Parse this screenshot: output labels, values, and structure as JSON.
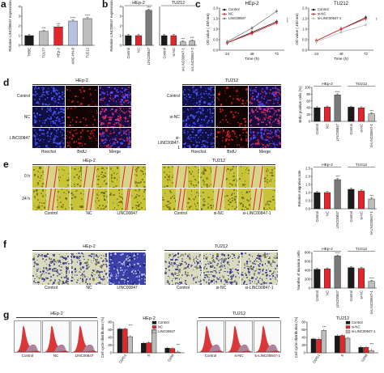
{
  "panels": {
    "a": "a",
    "b": "b",
    "c": "c",
    "d": "d",
    "e": "e",
    "f": "f",
    "g": "g"
  },
  "groups": {
    "hep2": "HEp-2",
    "tu212": "TU212"
  },
  "colors": {
    "control": "#1a1a1a",
    "red": "#e3262c",
    "gray": "#bdbdbd",
    "blue_dapi": "#2228c8",
    "red_brdu": "#d21a1a",
    "wound_yellow": "#c9c33a",
    "invasion_blue": "#3d3fa6"
  },
  "d_images": {
    "rows_hep2": [
      "Control",
      "NC",
      "LINC00847"
    ],
    "rows_tu212": [
      "Control",
      "si-NC",
      "si-LINC00847-1"
    ],
    "cols": [
      "Hoechst",
      "BrdU",
      "Merge"
    ]
  },
  "e_images": {
    "rows": [
      "0 h",
      "24 h"
    ],
    "cols_hep2": [
      "Control",
      "NC",
      "LINC00847"
    ],
    "cols_tu212": [
      "Control",
      "si-NC",
      "si-LINC00847-1"
    ]
  },
  "f_images": {
    "cols_hep2": [
      "Control",
      "NC",
      "LINC00847"
    ],
    "cols_tu212": [
      "Control",
      "si-NC",
      "si-LINC00847-1"
    ]
  },
  "g_images": {
    "cols_hep2": [
      "Control",
      "NC",
      "LINC00847"
    ],
    "cols_tu212": [
      "Control",
      "si-NC",
      "si-LINC00847-1"
    ]
  },
  "chart_data": [
    {
      "id": "a",
      "type": "bar",
      "ylabel": "Relative LINC00847 expression",
      "categories": [
        "THBE",
        "TU177",
        "HEp-2",
        "AMC-HN-8",
        "TU212"
      ],
      "values": [
        1.0,
        1.45,
        1.9,
        2.5,
        2.75
      ],
      "colors": [
        "#1a1a1a",
        "#bdbdbd",
        "#e3262c",
        "#b5c3e0",
        "#bdbdbd"
      ],
      "ylim": [
        0,
        4
      ],
      "yticks": [
        "0",
        "1",
        "2",
        "3",
        "4"
      ],
      "sig": [
        "",
        "***",
        "***",
        "****",
        "****"
      ]
    },
    {
      "id": "b1",
      "type": "bar",
      "title": "HEp-2",
      "ylabel": "Relative LINC00847 expression",
      "categories": [
        "Control",
        "NC",
        "LINC00847"
      ],
      "values": [
        1.0,
        1.0,
        3.6
      ],
      "colors": [
        "#1a1a1a",
        "#e3262c",
        "#7a7a7a"
      ],
      "ylim": [
        0,
        4
      ],
      "yticks": [
        "0",
        "1",
        "2",
        "3",
        "4"
      ],
      "sig": [
        "",
        "",
        "***"
      ]
    },
    {
      "id": "b2",
      "type": "bar",
      "title": "TU212",
      "categories": [
        "Control",
        "si-NC",
        "si-LINC00847-1",
        "si-LINC00847-2"
      ],
      "values": [
        1.0,
        1.0,
        0.35,
        0.45
      ],
      "colors": [
        "#1a1a1a",
        "#e3262c",
        "#bdbdbd",
        "#bdbdbd"
      ],
      "ylim": [
        0,
        4
      ],
      "sig": [
        "",
        "",
        "***",
        "***"
      ]
    },
    {
      "id": "c1",
      "type": "line",
      "title": "HEp-2",
      "xlabel": "Time (h)",
      "ylabel": "OD value ( 450 nm)",
      "x": [
        24,
        48,
        72
      ],
      "ylim": [
        0,
        2.0
      ],
      "yticks": [
        "0.0",
        "0.5",
        "1.0",
        "1.5",
        "2.0"
      ],
      "legend": "top-left",
      "series": [
        {
          "name": "Control",
          "values": [
            0.35,
            0.85,
            1.35
          ],
          "color": "#1a1a1a"
        },
        {
          "name": "NC",
          "values": [
            0.35,
            0.8,
            1.3
          ],
          "color": "#e3262c"
        },
        {
          "name": "LINC00847",
          "values": [
            0.4,
            1.05,
            1.85
          ],
          "color": "#7a7a7a"
        }
      ],
      "sig": "****"
    },
    {
      "id": "c2",
      "type": "line",
      "title": "TU212",
      "xlabel": "Time (h)",
      "ylabel": "OD value ( 450 nm)",
      "x": [
        24,
        48,
        72
      ],
      "ylim": [
        0,
        2.0
      ],
      "yticks": [
        "0.0",
        "0.5",
        "1.0",
        "1.5",
        "2.0"
      ],
      "legend": "top-left",
      "series": [
        {
          "name": "Control",
          "values": [
            0.45,
            1.0,
            1.55
          ],
          "color": "#1a1a1a"
        },
        {
          "name": "si-NC",
          "values": [
            0.45,
            1.0,
            1.5
          ],
          "color": "#e3262c"
        },
        {
          "name": "si-LINC00847-1",
          "values": [
            0.4,
            0.85,
            1.2
          ],
          "color": "#bdbdbd"
        }
      ],
      "sig": "**"
    },
    {
      "id": "d",
      "type": "bar",
      "ylabel": "BrdU positive cells (%)",
      "groups": [
        "HEp-2",
        "TU212"
      ],
      "categories": [
        "Control",
        "NC",
        "LINC00847",
        "Control",
        "si-NC",
        "si-LINC00847-1"
      ],
      "values": [
        40,
        42,
        78,
        42,
        40,
        22
      ],
      "colors": [
        "#1a1a1a",
        "#e3262c",
        "#7a7a7a",
        "#1a1a1a",
        "#e3262c",
        "#bdbdbd"
      ],
      "ylim": [
        0,
        100
      ],
      "yticks": [
        "0",
        "20",
        "40",
        "60",
        "80",
        "100"
      ],
      "sig": [
        "",
        "",
        "****",
        "",
        "",
        "***"
      ]
    },
    {
      "id": "e",
      "type": "bar",
      "ylabel": "Relative migration rate",
      "groups": [
        "HEp-2",
        "TU212"
      ],
      "categories": [
        "Control",
        "NC",
        "LINC00847",
        "Control",
        "si-NC",
        "si-LINC00847-1"
      ],
      "values": [
        1.0,
        1.0,
        1.8,
        1.2,
        1.1,
        0.6
      ],
      "colors": [
        "#1a1a1a",
        "#e3262c",
        "#7a7a7a",
        "#1a1a1a",
        "#e3262c",
        "#bdbdbd"
      ],
      "ylim": [
        0,
        2.5
      ],
      "yticks": [
        "0.0",
        "0.5",
        "1.0",
        "1.5",
        "2.0",
        "2.5"
      ],
      "sig": [
        "",
        "",
        "***",
        "",
        "",
        "***"
      ]
    },
    {
      "id": "f",
      "type": "bar",
      "ylabel": "Number of invasion cells",
      "groups": [
        "HEp-2",
        "TU212"
      ],
      "categories": [
        "Control",
        "NC",
        "LINC00847",
        "Control",
        "si-NC",
        "si-LINC00847-1"
      ],
      "values": [
        420,
        430,
        720,
        460,
        440,
        150
      ],
      "colors": [
        "#1a1a1a",
        "#e3262c",
        "#7a7a7a",
        "#1a1a1a",
        "#e3262c",
        "#bdbdbd"
      ],
      "ylim": [
        0,
        800
      ],
      "yticks": [
        "0",
        "200",
        "400",
        "600",
        "800"
      ],
      "sig": [
        "",
        "",
        "****",
        "",
        "",
        "****"
      ]
    },
    {
      "id": "g1",
      "type": "bar",
      "title": "HEp-2",
      "ylabel": "Cell cycle distribution (%)",
      "categories": [
        "G0/G1",
        "S",
        "G2/M"
      ],
      "ylim": [
        0,
        80
      ],
      "yticks": [
        "0",
        "20",
        "40",
        "60",
        "80"
      ],
      "legend": "top-right",
      "series": [
        {
          "name": "Control",
          "values": [
            62,
            25,
            12
          ],
          "color": "#1a1a1a"
        },
        {
          "name": "NC",
          "values": [
            62,
            26,
            11
          ],
          "color": "#e3262c"
        },
        {
          "name": "LINC00847",
          "values": [
            42,
            60,
            2
          ],
          "color": "#bdbdbd"
        }
      ],
      "sig": [
        "***",
        "***",
        "***"
      ]
    },
    {
      "id": "g2",
      "type": "bar",
      "title": "TU212",
      "ylabel": "Cell cycle distribution (%)",
      "categories": [
        "G0/G1",
        "S",
        "G2/M"
      ],
      "ylim": [
        0,
        80
      ],
      "yticks": [
        "0",
        "20",
        "40",
        "60",
        "80"
      ],
      "legend": "top-right",
      "series": [
        {
          "name": "Control",
          "values": [
            36,
            44,
            14
          ],
          "color": "#1a1a1a"
        },
        {
          "name": "si-NC",
          "values": [
            35,
            45,
            14
          ],
          "color": "#e3262c"
        },
        {
          "name": "si-LINC00847-1",
          "values": [
            58,
            38,
            6
          ],
          "color": "#bdbdbd"
        }
      ],
      "sig": [
        "***",
        "***",
        "***"
      ]
    }
  ]
}
